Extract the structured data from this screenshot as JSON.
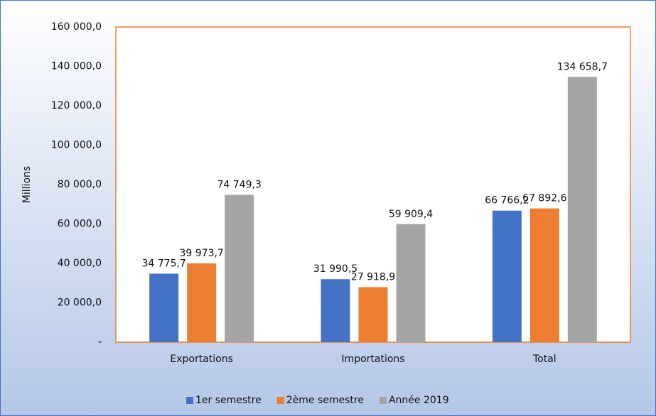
{
  "chart_data": {
    "type": "bar",
    "y_label": "Millions",
    "categories": [
      "Exportations",
      "Importations",
      "Total"
    ],
    "series": [
      {
        "name": "1er semestre",
        "color": "#4472c4",
        "values": [
          34775.7,
          31990.5,
          66766.2
        ],
        "value_labels": [
          "34 775,7",
          "31 990,5",
          "66 766,2"
        ]
      },
      {
        "name": "2ème semestre",
        "color": "#ed7d31",
        "values": [
          39973.7,
          27918.9,
          67892.6
        ],
        "value_labels": [
          "39 973,7",
          "27 918,9",
          "67 892,6"
        ]
      },
      {
        "name": "Année 2019",
        "color": "#a5a5a5",
        "values": [
          74749.3,
          59909.4,
          134658.7
        ],
        "value_labels": [
          "74 749,3",
          "59 909,4",
          "134 658,7"
        ]
      }
    ],
    "ylim": [
      0,
      160000
    ],
    "yticks": [
      {
        "value": 0,
        "label": "-"
      },
      {
        "value": 20000,
        "label": "20 000,0"
      },
      {
        "value": 40000,
        "label": "40 000,0"
      },
      {
        "value": 60000,
        "label": "60 000,0"
      },
      {
        "value": 80000,
        "label": "80 000,0"
      },
      {
        "value": 100000,
        "label": "100 000,0"
      },
      {
        "value": 120000,
        "label": "120 000,0"
      },
      {
        "value": 140000,
        "label": "140 000,0"
      },
      {
        "value": 160000,
        "label": "160 000,0"
      }
    ],
    "grid": false,
    "legend": "bottom"
  }
}
